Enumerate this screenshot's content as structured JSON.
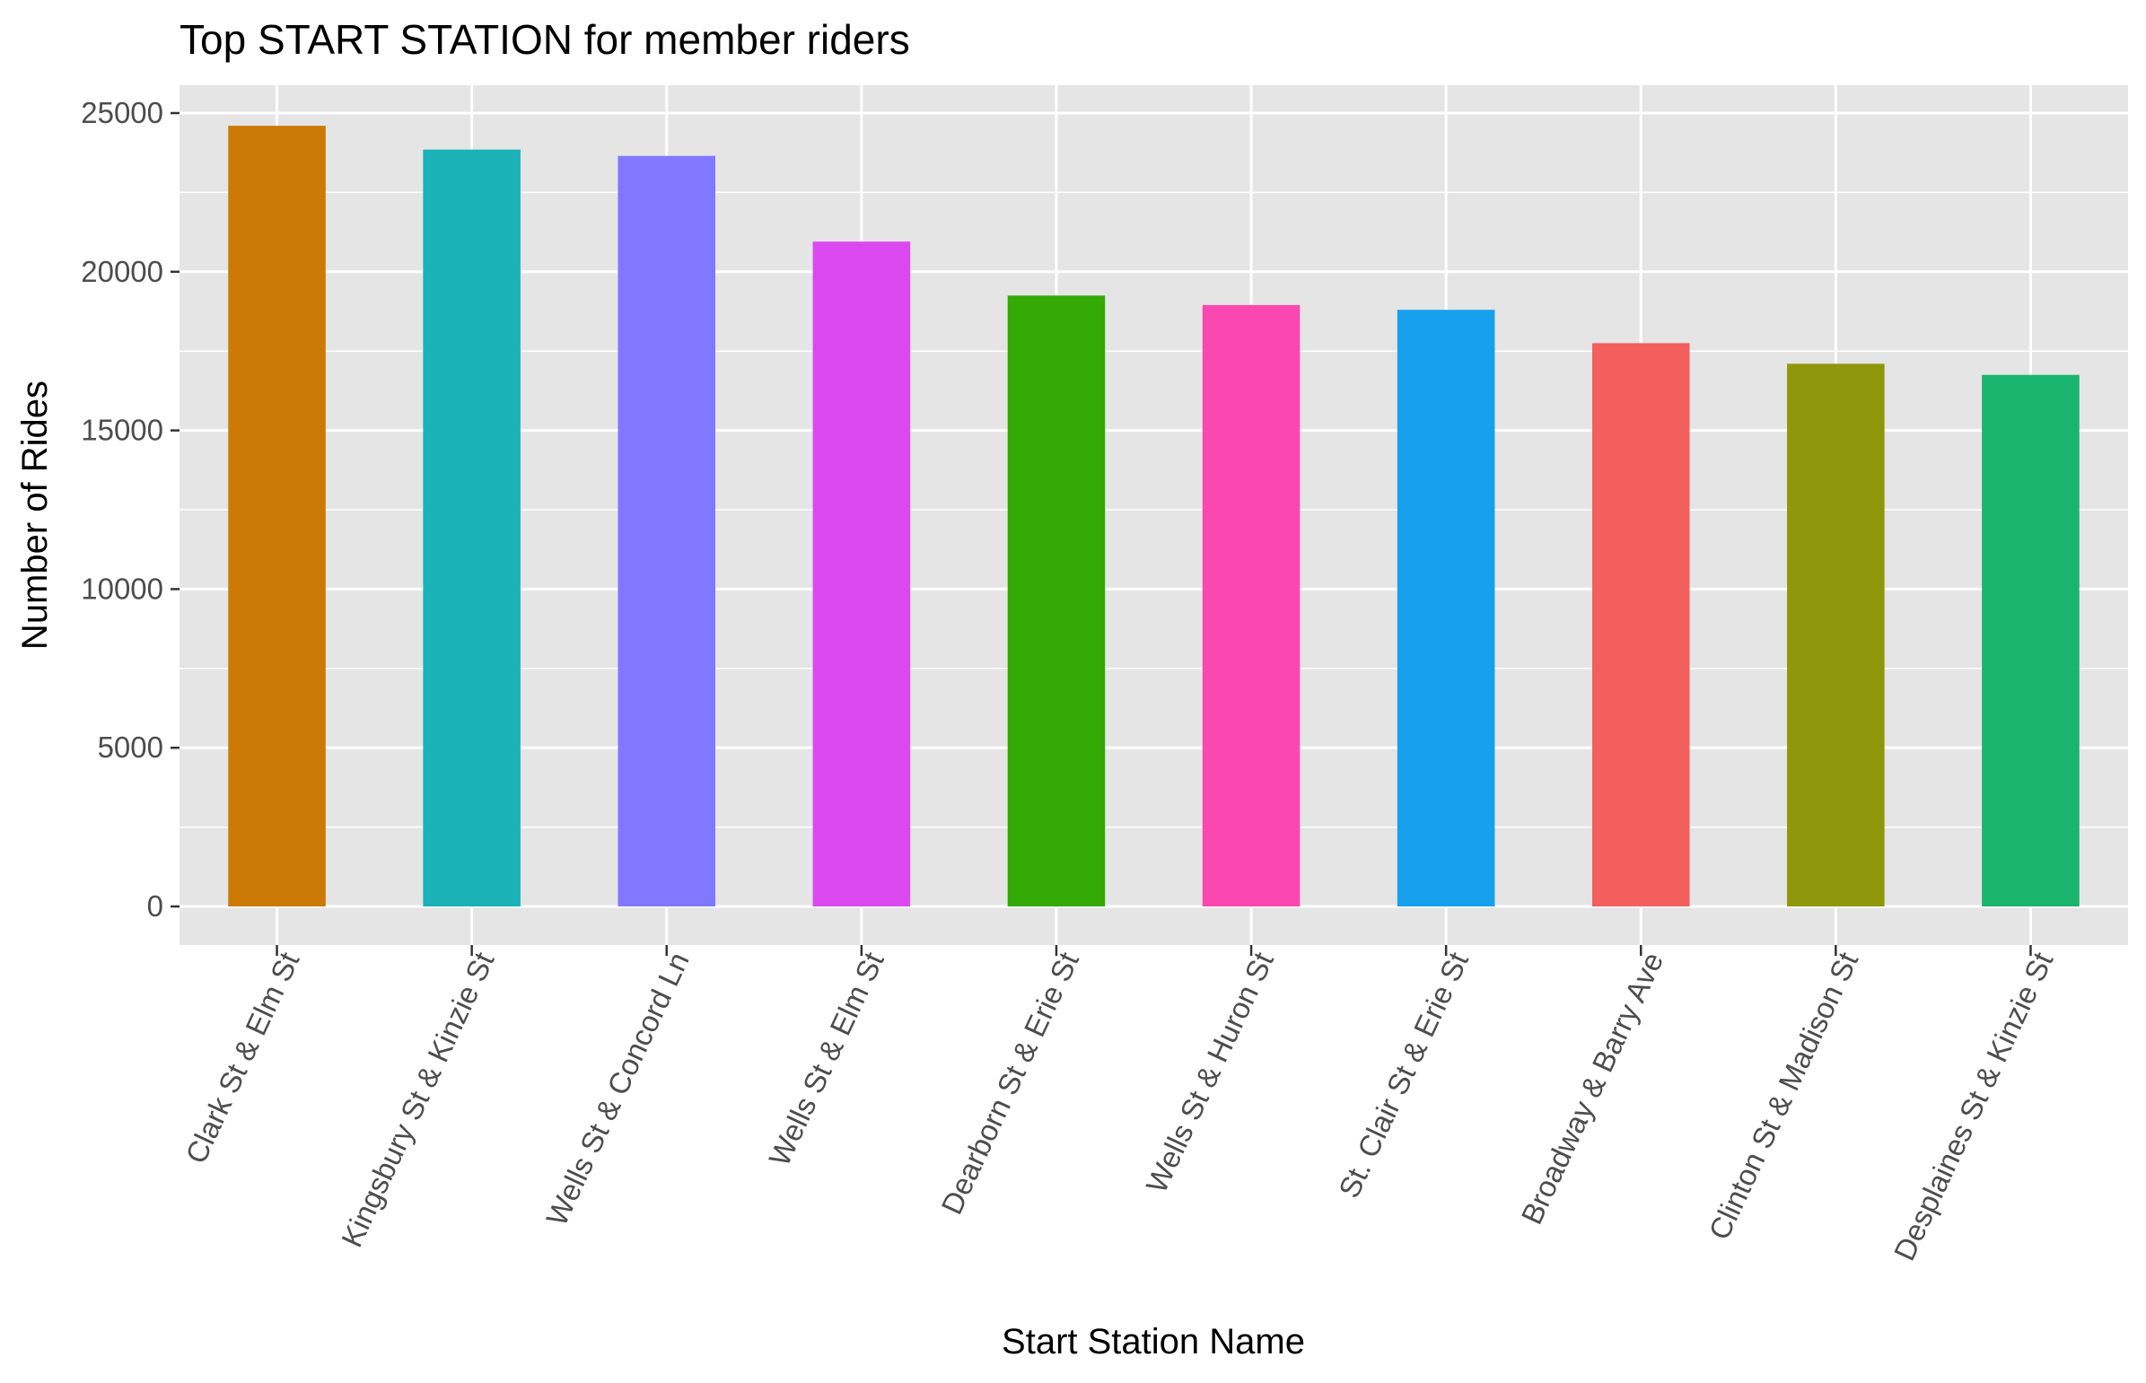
{
  "chart_data": {
    "type": "bar",
    "title": "Top START STATION for member riders",
    "xlabel": "Start Station Name",
    "ylabel": "Number of Rides",
    "categories": [
      "Clark St & Elm St",
      "Kingsbury St & Kinzie St",
      "Wells St & Concord Ln",
      "Wells St & Elm St",
      "Dearborn St & Erie St",
      "Wells St & Huron St",
      "St. Clair St & Erie St",
      "Broadway & Barry Ave",
      "Clinton St & Madison St",
      "Desplaines St & Kinzie St"
    ],
    "values": [
      24600,
      23850,
      23650,
      20950,
      19250,
      18950,
      18800,
      17750,
      17100,
      16750
    ],
    "colors": [
      "#CC7A05",
      "#1AB2B7",
      "#8278FF",
      "#DC48F0",
      "#33AA05",
      "#FB48B0",
      "#16A0EE",
      "#F35F5C",
      "#8F970A",
      "#19B46E"
    ],
    "ylim": [
      0,
      26200
    ],
    "yticks": [
      0,
      5000,
      10000,
      15000,
      20000,
      25000
    ],
    "ytick_labels": [
      "0",
      "5000",
      "10000",
      "15000",
      "20000",
      "25000"
    ],
    "grid": true,
    "legend": "none",
    "background": "#E5E5E5",
    "grid_color": "#FFFFFF"
  }
}
